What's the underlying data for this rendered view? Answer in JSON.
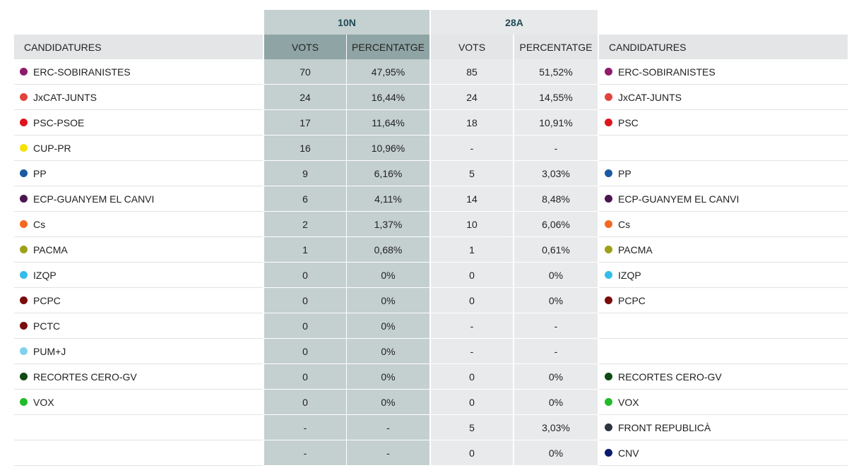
{
  "table": {
    "groups": [
      "10N",
      "28A"
    ],
    "columns": [
      "CANDIDATURES",
      "VOTS",
      "PERCENTATGE",
      "VOTS",
      "PERCENTATGE",
      "CANDIDATURES"
    ],
    "rows": [
      {
        "party": "ERC-SOBIRANISTES",
        "color": "#8e1b6b",
        "votes_10n": 70,
        "pct_10n": "47,95%",
        "votes_28a": 85,
        "pct_28a": "51,52%",
        "party_28a": "ERC-SOBIRANISTES",
        "color_28a": "#8e1b6b"
      },
      {
        "party": "JxCAT-JUNTS",
        "color": "#e0443d",
        "votes_10n": 24,
        "pct_10n": "16,44%",
        "votes_28a": 24,
        "pct_28a": "14,55%",
        "party_28a": "JxCAT-JUNTS",
        "color_28a": "#e0443d"
      },
      {
        "party": "PSC-PSOE",
        "color": "#e0141e",
        "votes_10n": 17,
        "pct_10n": "11,64%",
        "votes_28a": 18,
        "pct_28a": "10,91%",
        "party_28a": "PSC",
        "color_28a": "#e0141e"
      },
      {
        "party": "CUP-PR",
        "color": "#f5e300",
        "votes_10n": 16,
        "pct_10n": "10,96%",
        "votes_28a": "-",
        "pct_28a": "-",
        "party_28a": null,
        "color_28a": null
      },
      {
        "party": "PP",
        "color": "#1a5aa0",
        "votes_10n": 9,
        "pct_10n": "6,16%",
        "votes_28a": 5,
        "pct_28a": "3,03%",
        "party_28a": "PP",
        "color_28a": "#1a5aa0"
      },
      {
        "party": "ECP-GUANYEM EL CANVI",
        "color": "#4b1550",
        "votes_10n": 6,
        "pct_10n": "4,11%",
        "votes_28a": 14,
        "pct_28a": "8,48%",
        "party_28a": "ECP-GUANYEM EL CANVI",
        "color_28a": "#4b1550"
      },
      {
        "party": "Cs",
        "color": "#f26a21",
        "votes_10n": 2,
        "pct_10n": "1,37%",
        "votes_28a": 10,
        "pct_28a": "6,06%",
        "party_28a": "Cs",
        "color_28a": "#f26a21"
      },
      {
        "party": "PACMA",
        "color": "#9fa01a",
        "votes_10n": 1,
        "pct_10n": "0,68%",
        "votes_28a": 1,
        "pct_28a": "0,61%",
        "party_28a": "PACMA",
        "color_28a": "#9fa01a"
      },
      {
        "party": "IZQP",
        "color": "#33bde8",
        "votes_10n": 0,
        "pct_10n": "0%",
        "votes_28a": 0,
        "pct_28a": "0%",
        "party_28a": "IZQP",
        "color_28a": "#33bde8"
      },
      {
        "party": "PCPC",
        "color": "#7a0c0c",
        "votes_10n": 0,
        "pct_10n": "0%",
        "votes_28a": 0,
        "pct_28a": "0%",
        "party_28a": "PCPC",
        "color_28a": "#7a0c0c"
      },
      {
        "party": "PCTC",
        "color": "#7a0c0c",
        "votes_10n": 0,
        "pct_10n": "0%",
        "votes_28a": "-",
        "pct_28a": "-",
        "party_28a": null,
        "color_28a": null
      },
      {
        "party": "PUM+J",
        "color": "#80d0ee",
        "votes_10n": 0,
        "pct_10n": "0%",
        "votes_28a": "-",
        "pct_28a": "-",
        "party_28a": null,
        "color_28a": null
      },
      {
        "party": "RECORTES CERO-GV",
        "color": "#0f4a12",
        "votes_10n": 0,
        "pct_10n": "0%",
        "votes_28a": 0,
        "pct_28a": "0%",
        "party_28a": "RECORTES CERO-GV",
        "color_28a": "#0f4a12"
      },
      {
        "party": "VOX",
        "color": "#22bb2a",
        "votes_10n": 0,
        "pct_10n": "0%",
        "votes_28a": 0,
        "pct_28a": "0%",
        "party_28a": "VOX",
        "color_28a": "#22bb2a"
      },
      {
        "party": null,
        "color": null,
        "votes_10n": "-",
        "pct_10n": "-",
        "votes_28a": 5,
        "pct_28a": "3,03%",
        "party_28a": "FRONT REPUBLICÀ",
        "color_28a": "#2e3540"
      },
      {
        "party": null,
        "color": null,
        "votes_10n": "-",
        "pct_10n": "-",
        "votes_28a": 0,
        "pct_28a": "0%",
        "party_28a": "CNV",
        "color_28a": "#0a1a6e"
      }
    ]
  }
}
